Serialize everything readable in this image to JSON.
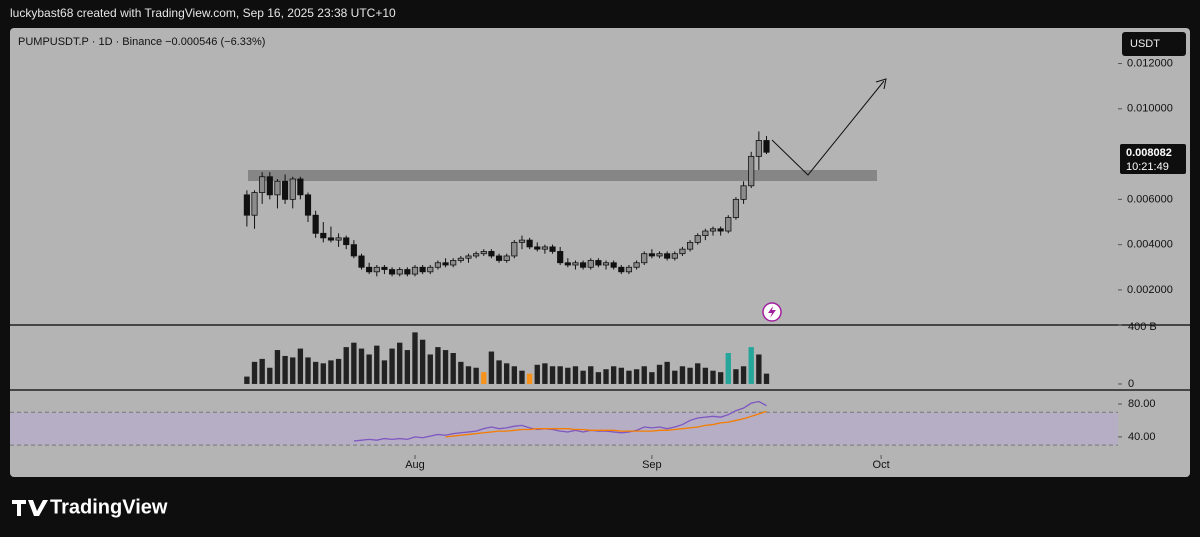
{
  "byline": "luckybast68 created with TradingView.com, Sep 16, 2025 23:38 UTC+10",
  "brand": "TradingView",
  "chart_data": {
    "type": "candlestick",
    "title": "PUMPUSDT.P · 1D · Binance  −0.000546 (−6.33%)",
    "currency": "USDT",
    "countdown": "10:21:49",
    "up_color": "#8c8c8c",
    "down_color": "#111111",
    "xlim": [
      -31,
      114
    ],
    "xticks": [
      {
        "value": 22,
        "label": "Aug"
      },
      {
        "value": 53,
        "label": "Sep"
      },
      {
        "value": 83,
        "label": "Oct"
      }
    ],
    "ylim": [
      0.00045,
      0.01357
    ],
    "yticks": [
      {
        "value": 0.002,
        "label": "0.002000"
      },
      {
        "value": 0.004,
        "label": "0.004000"
      },
      {
        "value": 0.006,
        "label": "0.006000"
      },
      {
        "value": 0.01,
        "label": "0.010000"
      },
      {
        "value": 0.012,
        "label": "0.012000"
      }
    ],
    "open": [
      0.0062,
      0.0053,
      0.0063,
      0.007,
      0.0062,
      0.0068,
      0.006,
      0.0069,
      0.0062,
      0.0053,
      0.0045,
      0.0043,
      0.0042,
      0.0043,
      0.004,
      0.0035,
      0.003,
      0.0028,
      0.003,
      0.0029,
      0.0027,
      0.0029,
      0.0027,
      0.003,
      0.0028,
      0.003,
      0.0032,
      0.0031,
      0.0033,
      0.0034,
      0.0035,
      0.0036,
      0.0037,
      0.0035,
      0.0033,
      0.0035,
      0.0041,
      0.0042,
      0.0039,
      0.0038,
      0.0039,
      0.0037,
      0.0032,
      0.0031,
      0.0032,
      0.003,
      0.0033,
      0.0031,
      0.0032,
      0.003,
      0.0028,
      0.003,
      0.0032,
      0.0036,
      0.0035,
      0.0036,
      0.0034,
      0.0036,
      0.0038,
      0.0041,
      0.0044,
      0.0046,
      0.0047,
      0.0046,
      0.0052,
      0.006,
      0.0066,
      0.0079,
      0.0086
    ],
    "high": [
      0.0064,
      0.0064,
      0.0072,
      0.0072,
      0.0069,
      0.0071,
      0.007,
      0.007,
      0.0063,
      0.0055,
      0.005,
      0.0048,
      0.0045,
      0.0044,
      0.0042,
      0.0036,
      0.0032,
      0.0031,
      0.0031,
      0.003,
      0.003,
      0.003,
      0.0031,
      0.0031,
      0.0031,
      0.0033,
      0.0034,
      0.0034,
      0.0035,
      0.0036,
      0.0037,
      0.0038,
      0.0038,
      0.0036,
      0.0036,
      0.0042,
      0.0044,
      0.0043,
      0.0041,
      0.004,
      0.004,
      0.0039,
      0.0034,
      0.0033,
      0.0033,
      0.0034,
      0.0034,
      0.0033,
      0.0033,
      0.0031,
      0.0031,
      0.0033,
      0.0037,
      0.0038,
      0.0037,
      0.0037,
      0.0037,
      0.0039,
      0.0042,
      0.0045,
      0.0047,
      0.0048,
      0.0048,
      0.0053,
      0.0061,
      0.0068,
      0.0081,
      0.009,
      0.0088
    ],
    "low": [
      0.0048,
      0.0047,
      0.0058,
      0.006,
      0.0056,
      0.0058,
      0.0056,
      0.006,
      0.005,
      0.0043,
      0.0041,
      0.0041,
      0.0039,
      0.0038,
      0.0034,
      0.0029,
      0.0027,
      0.0026,
      0.0027,
      0.0026,
      0.0026,
      0.0026,
      0.0026,
      0.0027,
      0.0027,
      0.0029,
      0.003,
      0.003,
      0.0032,
      0.0032,
      0.0034,
      0.0035,
      0.0034,
      0.0032,
      0.0032,
      0.0034,
      0.0038,
      0.0038,
      0.0037,
      0.0036,
      0.0036,
      0.0031,
      0.003,
      0.0029,
      0.0029,
      0.0029,
      0.003,
      0.0029,
      0.0029,
      0.0027,
      0.0027,
      0.0029,
      0.0031,
      0.0034,
      0.0034,
      0.0033,
      0.0033,
      0.0035,
      0.0037,
      0.004,
      0.0042,
      0.0044,
      0.0044,
      0.0045,
      0.0051,
      0.0058,
      0.0065,
      0.0073,
      0.008
    ],
    "close": [
      0.0053,
      0.0063,
      0.007,
      0.0062,
      0.0068,
      0.006,
      0.0069,
      0.0062,
      0.0053,
      0.0045,
      0.0043,
      0.0042,
      0.0043,
      0.004,
      0.0035,
      0.003,
      0.0028,
      0.003,
      0.0029,
      0.0027,
      0.0029,
      0.0027,
      0.003,
      0.0028,
      0.003,
      0.0032,
      0.0031,
      0.0033,
      0.0034,
      0.0035,
      0.0036,
      0.0037,
      0.0035,
      0.0033,
      0.0035,
      0.0041,
      0.0042,
      0.0039,
      0.0038,
      0.0039,
      0.0037,
      0.0032,
      0.0031,
      0.0032,
      0.003,
      0.0033,
      0.0031,
      0.0032,
      0.003,
      0.0028,
      0.003,
      0.0032,
      0.0036,
      0.0035,
      0.0036,
      0.0034,
      0.0036,
      0.0038,
      0.0041,
      0.0044,
      0.0046,
      0.0047,
      0.0046,
      0.0052,
      0.006,
      0.0066,
      0.0079,
      0.0086,
      0.008082
    ],
    "volume": {
      "ylim": [
        -41,
        400
      ],
      "yticks": [
        0,
        {
          "value": 400,
          "label": "400 B"
        }
      ],
      "values": [
        50,
        150,
        170,
        110,
        230,
        190,
        180,
        240,
        180,
        150,
        140,
        160,
        170,
        250,
        280,
        240,
        200,
        260,
        160,
        240,
        280,
        230,
        350,
        300,
        200,
        250,
        230,
        210,
        150,
        120,
        110,
        80,
        220,
        160,
        140,
        120,
        90,
        70,
        130,
        140,
        120,
        120,
        110,
        120,
        90,
        120,
        80,
        100,
        120,
        110,
        90,
        100,
        120,
        80,
        130,
        150,
        90,
        120,
        110,
        140,
        110,
        90,
        80,
        210,
        100,
        120,
        250,
        200,
        70
      ],
      "colors": [
        "#222",
        "#222",
        "#222",
        "#222",
        "#222",
        "#222",
        "#222",
        "#222",
        "#222",
        "#222",
        "#222",
        "#222",
        "#222",
        "#222",
        "#222",
        "#222",
        "#222",
        "#222",
        "#222",
        "#222",
        "#222",
        "#222",
        "#222",
        "#222",
        "#222",
        "#222",
        "#222",
        "#222",
        "#222",
        "#222",
        "#222",
        "#f7931a",
        "#222",
        "#222",
        "#222",
        "#222",
        "#222",
        "#f7931a",
        "#222",
        "#222",
        "#222",
        "#222",
        "#222",
        "#222",
        "#222",
        "#222",
        "#222",
        "#222",
        "#222",
        "#222",
        "#222",
        "#222",
        "#222",
        "#222",
        "#222",
        "#222",
        "#222",
        "#222",
        "#222",
        "#222",
        "#222",
        "#222",
        "#222",
        "#26a69a",
        "#222",
        "#222",
        "#26a69a",
        "#222",
        "#222"
      ]
    },
    "rsi": {
      "ylim": [
        18,
        97
      ],
      "yticks": [
        {
          "value": 40,
          "label": "40.00"
        },
        {
          "value": 80,
          "label": "80.00"
        }
      ],
      "band": [
        30,
        70
      ],
      "series": [
        {
          "color": "#7e57c2",
          "values": [
            null,
            null,
            null,
            null,
            null,
            null,
            null,
            null,
            null,
            null,
            null,
            null,
            null,
            null,
            35,
            36,
            37,
            36,
            38,
            37,
            38,
            37,
            40,
            39,
            41,
            43,
            42,
            44,
            45,
            46,
            47,
            50,
            52,
            50,
            51,
            53,
            54,
            51,
            49,
            50,
            49,
            47,
            46,
            48,
            46,
            48,
            47,
            47,
            46,
            45,
            46,
            48,
            52,
            51,
            52,
            50,
            52,
            55,
            60,
            63,
            64,
            65,
            64,
            67,
            72,
            75,
            81,
            83,
            78
          ]
        },
        {
          "color": "#f57c00",
          "values": [
            null,
            null,
            null,
            null,
            null,
            null,
            null,
            null,
            null,
            null,
            null,
            null,
            null,
            null,
            null,
            null,
            null,
            null,
            null,
            null,
            null,
            null,
            null,
            null,
            null,
            null,
            40,
            41,
            42,
            43,
            44,
            45,
            46,
            47,
            47,
            48,
            49,
            49,
            50,
            50,
            50,
            50,
            50,
            49,
            49,
            48,
            48,
            48,
            48,
            47,
            47,
            47,
            47,
            47,
            48,
            48,
            49,
            50,
            51,
            52,
            54,
            55,
            57,
            58,
            60,
            62,
            65,
            68,
            71
          ]
        }
      ]
    }
  }
}
